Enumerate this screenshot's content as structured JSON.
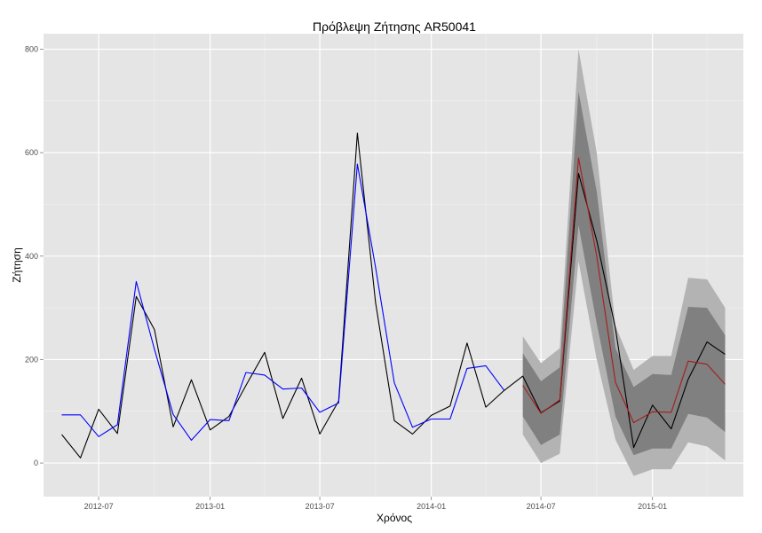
{
  "chart_data": {
    "type": "line",
    "title": "Πρόβλεψη Ζήτησης AR50041",
    "xlabel": "Χρόνος",
    "ylabel": "Ζήτηση",
    "ylim": [
      -65,
      830
    ],
    "xlim": [
      "2012-04-01",
      "2015-05-31"
    ],
    "grid": true,
    "legend": "none",
    "y_ticks": [
      0,
      200,
      400,
      600,
      800
    ],
    "x_ticks": [
      "2012-07",
      "2013-01",
      "2013-07",
      "2014-01",
      "2014-07",
      "2015-01"
    ],
    "series": [
      {
        "color": "#000000",
        "x": [
          "2012-05",
          "2012-06",
          "2012-07",
          "2012-08",
          "2012-09",
          "2012-10",
          "2012-11",
          "2012-12",
          "2013-01",
          "2013-02",
          "2013-03",
          "2013-04",
          "2013-05",
          "2013-06",
          "2013-07",
          "2013-08",
          "2013-09",
          "2013-10",
          "2013-11",
          "2013-12",
          "2014-01",
          "2014-02",
          "2014-03",
          "2014-04",
          "2014-05",
          "2014-06",
          "2014-07",
          "2014-08",
          "2014-09",
          "2014-10",
          "2014-11",
          "2014-12",
          "2015-01",
          "2015-02",
          "2015-03",
          "2015-04",
          "2015-05"
        ],
        "values": [
          55,
          10,
          104,
          57,
          322,
          258,
          70,
          161,
          64,
          90,
          150,
          214,
          86,
          164,
          56,
          120,
          638,
          310,
          82,
          56,
          92,
          110,
          232,
          108,
          140,
          168,
          97,
          120,
          560,
          430,
          260,
          30,
          112,
          66,
          162,
          234,
          210
        ]
      },
      {
        "color": "#0000ff",
        "x": [
          "2012-05",
          "2012-06",
          "2012-07",
          "2012-08",
          "2012-09",
          "2012-10",
          "2012-11",
          "2012-12",
          "2013-01",
          "2013-02",
          "2013-03",
          "2013-04",
          "2013-05",
          "2013-06",
          "2013-07",
          "2013-08",
          "2013-09",
          "2013-10",
          "2013-11",
          "2013-12",
          "2014-01",
          "2014-02",
          "2014-03",
          "2014-04",
          "2014-05"
        ],
        "values": [
          93,
          93,
          51,
          74,
          351,
          220,
          94,
          44,
          84,
          82,
          175,
          170,
          143,
          145,
          98,
          116,
          578,
          378,
          155,
          69,
          85,
          85,
          183,
          188,
          141
        ]
      },
      {
        "color": "#a51c1c",
        "x": [
          "2014-06",
          "2014-07",
          "2014-08",
          "2014-09",
          "2014-10",
          "2014-11",
          "2014-12",
          "2015-01",
          "2015-02",
          "2015-03",
          "2015-04",
          "2015-05"
        ],
        "values": [
          150,
          96,
          122,
          590,
          400,
          156,
          78,
          99,
          98,
          197,
          191,
          152
        ]
      }
    ],
    "forecast_intervals": {
      "x": [
        "2014-06",
        "2014-07",
        "2014-08",
        "2014-09",
        "2014-10",
        "2014-11",
        "2014-12",
        "2015-01",
        "2015-02",
        "2015-03",
        "2015-04",
        "2015-05"
      ],
      "inner": {
        "color": "#808080",
        "lower": [
          90,
          35,
          55,
          460,
          270,
          90,
          15,
          28,
          28,
          95,
          88,
          60
        ],
        "upper": [
          212,
          158,
          185,
          718,
          525,
          222,
          147,
          172,
          170,
          302,
          300,
          247
        ]
      },
      "outer": {
        "color": "#b3b3b3",
        "lower": [
          55,
          0,
          18,
          390,
          200,
          45,
          -25,
          -12,
          -12,
          40,
          32,
          5
        ],
        "upper": [
          245,
          193,
          222,
          800,
          600,
          265,
          180,
          207,
          207,
          358,
          355,
          300
        ]
      }
    }
  }
}
